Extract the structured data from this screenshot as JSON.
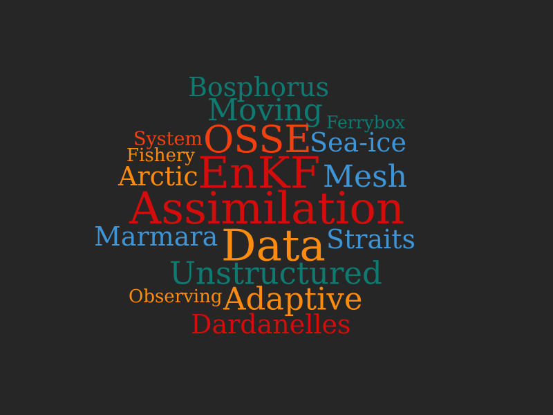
{
  "background": "#262626",
  "palette": {
    "teal": "#0f7a72",
    "red": "#d40c0c",
    "orange_red": "#f2400f",
    "orange": "#ff8c0f",
    "blue": "#3d94d6"
  },
  "words": {
    "bosphorus": {
      "text": "Bosphorus",
      "color": "#0f7a72"
    },
    "moving": {
      "text": "Moving",
      "color": "#0f7a72"
    },
    "ferrybox": {
      "text": "Ferrybox",
      "color": "#0f7a72"
    },
    "system": {
      "text": "System",
      "color": "#f2400f"
    },
    "osse": {
      "text": "OSSE",
      "color": "#f2400f"
    },
    "seaice": {
      "text": "Sea-ice",
      "color": "#3d94d6"
    },
    "fishery": {
      "text": "Fishery",
      "color": "#ff8c0f"
    },
    "arctic": {
      "text": "Arctic",
      "color": "#ff8c0f"
    },
    "enkf": {
      "text": "EnKF",
      "color": "#d40c0c"
    },
    "mesh": {
      "text": "Mesh",
      "color": "#3d94d6"
    },
    "assimilation": {
      "text": "Assimilation",
      "color": "#d40c0c"
    },
    "marmara": {
      "text": "Marmara",
      "color": "#3d94d6"
    },
    "data": {
      "text": "Data",
      "color": "#ff8c0f"
    },
    "straits": {
      "text": "Straits",
      "color": "#3d94d6"
    },
    "unstructured": {
      "text": "Unstructured",
      "color": "#0f7a72"
    },
    "observing": {
      "text": "Observing",
      "color": "#ff8c0f"
    },
    "adaptive": {
      "text": "Adaptive",
      "color": "#ff8c0f"
    },
    "dardanelles": {
      "text": "Dardanelles",
      "color": "#d40c0c"
    }
  }
}
